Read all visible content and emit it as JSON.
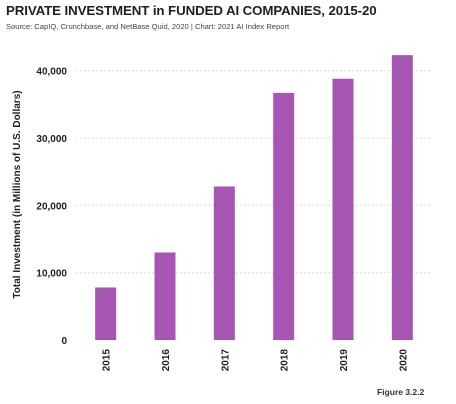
{
  "header": {
    "title": "PRIVATE INVESTMENT in FUNDED AI COMPANIES, 2015-20",
    "subtitle": "Source: CapIQ, Crunchbase, and NetBase Quid, 2020 | Chart: 2021 AI Index Report",
    "figure_label": "Figure 3.2.2"
  },
  "colors": {
    "bar": "#a755b2",
    "grid": "#dcdcdc",
    "axis": "#555555"
  },
  "chart_data": {
    "type": "bar",
    "title": "PRIVATE INVESTMENT in FUNDED AI COMPANIES, 2015-20",
    "xlabel": "",
    "ylabel": "Total Investment (in Millions of U.S. Dollars)",
    "categories": [
      "2015",
      "2016",
      "2017",
      "2018",
      "2019",
      "2020"
    ],
    "values": [
      7800,
      13000,
      22800,
      36700,
      38800,
      42300
    ],
    "ylim": [
      0,
      45000
    ],
    "yticks": [
      0,
      10000,
      20000,
      30000,
      40000
    ],
    "ytick_labels": [
      "0",
      "10,000",
      "20,000",
      "30,000",
      "40,000"
    ],
    "grid": true
  }
}
